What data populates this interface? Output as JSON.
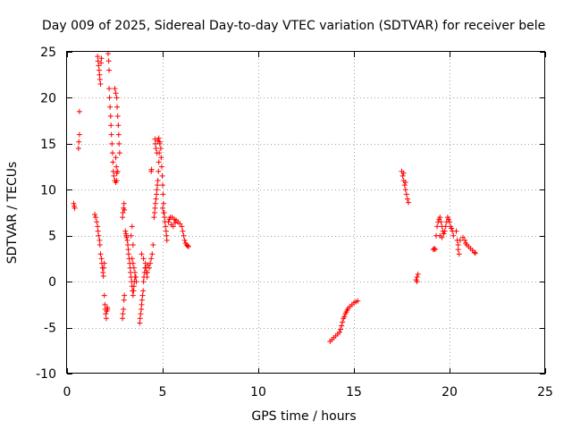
{
  "chart_data": {
    "type": "scatter",
    "title": "Day 009 of 2025, Sidereal Day-to-day VTEC variation (SDTVAR) for receiver bele",
    "xlabel": "GPS time / hours",
    "ylabel": "SDTVAR / TECUs",
    "xlim": [
      0,
      25
    ],
    "ylim": [
      -10,
      25
    ],
    "xticks": [
      0,
      5,
      10,
      15,
      20,
      25
    ],
    "yticks": [
      -10,
      -5,
      0,
      5,
      10,
      15,
      20,
      25
    ],
    "grid": true,
    "marker": "+",
    "color": "#ff0000",
    "series": [
      {
        "name": "SDTVAR",
        "points": [
          [
            0.35,
            8.5
          ],
          [
            0.38,
            8.2
          ],
          [
            0.4,
            8.0
          ],
          [
            0.6,
            14.5
          ],
          [
            0.62,
            15.2
          ],
          [
            0.65,
            16.0
          ],
          [
            0.65,
            18.5
          ],
          [
            1.45,
            7.3
          ],
          [
            1.5,
            7.0
          ],
          [
            1.55,
            6.5
          ],
          [
            1.6,
            6.0
          ],
          [
            1.62,
            5.5
          ],
          [
            1.65,
            5.0
          ],
          [
            1.7,
            4.5
          ],
          [
            1.72,
            4.0
          ],
          [
            1.75,
            3.0
          ],
          [
            1.8,
            2.5
          ],
          [
            1.82,
            2.0
          ],
          [
            1.85,
            1.5
          ],
          [
            1.88,
            1.0
          ],
          [
            1.9,
            0.6
          ],
          [
            1.92,
            1.5
          ],
          [
            1.95,
            2.0
          ],
          [
            1.6,
            24.5
          ],
          [
            1.62,
            24.0
          ],
          [
            1.65,
            23.5
          ],
          [
            1.68,
            23.0
          ],
          [
            1.7,
            22.5
          ],
          [
            1.72,
            22.0
          ],
          [
            1.75,
            21.5
          ],
          [
            1.8,
            24.3
          ],
          [
            1.78,
            23.8
          ],
          [
            1.95,
            -1.5
          ],
          [
            2.0,
            -3.0
          ],
          [
            2.02,
            -3.5
          ],
          [
            2.05,
            -4.0
          ],
          [
            2.08,
            -3.2
          ],
          [
            2.1,
            -2.8
          ],
          [
            2.12,
            -3.0
          ],
          [
            1.98,
            -2.5
          ],
          [
            2.15,
            24.8
          ],
          [
            2.18,
            24.0
          ],
          [
            2.2,
            23.0
          ],
          [
            2.2,
            21.0
          ],
          [
            2.22,
            20.0
          ],
          [
            2.25,
            19.0
          ],
          [
            2.28,
            18.0
          ],
          [
            2.3,
            17.0
          ],
          [
            2.32,
            16.0
          ],
          [
            2.35,
            15.0
          ],
          [
            2.38,
            14.0
          ],
          [
            2.4,
            13.0
          ],
          [
            2.42,
            12.0
          ],
          [
            2.45,
            11.5
          ],
          [
            2.5,
            11.0
          ],
          [
            2.55,
            10.8
          ],
          [
            2.6,
            11.0
          ],
          [
            2.65,
            12.0
          ],
          [
            2.5,
            21.0
          ],
          [
            2.55,
            20.5
          ],
          [
            2.6,
            20.0
          ],
          [
            2.62,
            19.0
          ],
          [
            2.65,
            18.0
          ],
          [
            2.68,
            17.0
          ],
          [
            2.7,
            16.0
          ],
          [
            2.72,
            15.0
          ],
          [
            2.75,
            14.0
          ],
          [
            2.55,
            13.5
          ],
          [
            2.58,
            12.5
          ],
          [
            2.6,
            11.8
          ],
          [
            2.9,
            -4.0
          ],
          [
            2.92,
            -3.5
          ],
          [
            2.95,
            -3.0
          ],
          [
            2.98,
            -2.0
          ],
          [
            3.0,
            -1.5
          ],
          [
            2.9,
            7.0
          ],
          [
            2.92,
            7.5
          ],
          [
            2.95,
            8.0
          ],
          [
            2.98,
            8.5
          ],
          [
            3.0,
            7.8
          ],
          [
            3.05,
            5.5
          ],
          [
            3.08,
            5.2
          ],
          [
            3.1,
            5.0
          ],
          [
            3.12,
            4.8
          ],
          [
            3.15,
            4.5
          ],
          [
            3.18,
            4.0
          ],
          [
            3.2,
            3.5
          ],
          [
            3.22,
            3.0
          ],
          [
            3.25,
            2.5
          ],
          [
            3.28,
            2.0
          ],
          [
            3.3,
            1.5
          ],
          [
            3.32,
            1.0
          ],
          [
            3.35,
            0.5
          ],
          [
            3.38,
            0.0
          ],
          [
            3.4,
            -0.5
          ],
          [
            3.42,
            -1.0
          ],
          [
            3.45,
            -1.5
          ],
          [
            3.48,
            -1.0
          ],
          [
            3.5,
            -0.5
          ],
          [
            3.52,
            0.0
          ],
          [
            3.55,
            0.5
          ],
          [
            3.4,
            2.5
          ],
          [
            3.45,
            2.0
          ],
          [
            3.5,
            1.5
          ],
          [
            3.55,
            1.0
          ],
          [
            3.6,
            0.5
          ],
          [
            3.62,
            0.0
          ],
          [
            3.4,
            6.0
          ],
          [
            3.35,
            5.0
          ],
          [
            3.45,
            4.0
          ],
          [
            3.8,
            -4.5
          ],
          [
            3.82,
            -4.0
          ],
          [
            3.85,
            -3.5
          ],
          [
            3.88,
            -3.0
          ],
          [
            3.9,
            -2.5
          ],
          [
            3.92,
            -2.0
          ],
          [
            3.95,
            -1.5
          ],
          [
            3.98,
            -1.0
          ],
          [
            4.0,
            0.0
          ],
          [
            4.02,
            0.5
          ],
          [
            4.05,
            1.0
          ],
          [
            4.08,
            1.5
          ],
          [
            4.1,
            2.0
          ],
          [
            4.12,
            1.5
          ],
          [
            4.15,
            1.0
          ],
          [
            4.18,
            0.5
          ],
          [
            4.2,
            1.0
          ],
          [
            4.22,
            1.8
          ],
          [
            4.0,
            2.5
          ],
          [
            3.9,
            3.0
          ],
          [
            4.3,
            1.5
          ],
          [
            4.35,
            2.0
          ],
          [
            4.4,
            2.5
          ],
          [
            4.45,
            3.0
          ],
          [
            4.5,
            4.0
          ],
          [
            4.4,
            12.0
          ],
          [
            4.42,
            12.2
          ],
          [
            4.55,
            7.0
          ],
          [
            4.58,
            7.5
          ],
          [
            4.6,
            8.0
          ],
          [
            4.62,
            8.5
          ],
          [
            4.65,
            9.0
          ],
          [
            4.68,
            9.5
          ],
          [
            4.7,
            10.0
          ],
          [
            4.72,
            10.5
          ],
          [
            4.75,
            11.0
          ],
          [
            4.78,
            12.0
          ],
          [
            4.8,
            13.0
          ],
          [
            4.82,
            14.0
          ],
          [
            4.85,
            15.0
          ],
          [
            4.6,
            15.5
          ],
          [
            4.62,
            15.0
          ],
          [
            4.65,
            14.5
          ],
          [
            4.7,
            14.0
          ],
          [
            4.75,
            15.3
          ],
          [
            4.8,
            15.6
          ],
          [
            4.85,
            15.2
          ],
          [
            4.9,
            14.5
          ],
          [
            4.92,
            13.5
          ],
          [
            4.95,
            12.5
          ],
          [
            4.98,
            11.5
          ],
          [
            5.0,
            10.5
          ],
          [
            5.02,
            9.5
          ],
          [
            5.05,
            8.5
          ],
          [
            5.08,
            7.5
          ],
          [
            5.1,
            7.0
          ],
          [
            5.12,
            6.5
          ],
          [
            5.15,
            6.0
          ],
          [
            5.18,
            5.5
          ],
          [
            5.2,
            5.0
          ],
          [
            5.22,
            4.5
          ],
          [
            5.0,
            8.0
          ],
          [
            5.05,
            7.5
          ],
          [
            5.3,
            6.5
          ],
          [
            5.35,
            6.8
          ],
          [
            5.4,
            7.0
          ],
          [
            5.5,
            7.0
          ],
          [
            5.6,
            6.8
          ],
          [
            5.7,
            6.7
          ],
          [
            5.8,
            6.5
          ],
          [
            5.9,
            6.3
          ],
          [
            6.0,
            6.0
          ],
          [
            6.05,
            5.5
          ],
          [
            6.1,
            5.0
          ],
          [
            6.15,
            4.5
          ],
          [
            6.2,
            4.2
          ],
          [
            6.25,
            4.0
          ],
          [
            6.3,
            3.9
          ],
          [
            6.35,
            3.8
          ],
          [
            5.45,
            6.2
          ],
          [
            5.55,
            6.0
          ],
          [
            5.65,
            6.4
          ],
          [
            13.75,
            -6.5
          ],
          [
            13.85,
            -6.3
          ],
          [
            13.95,
            -6.1
          ],
          [
            14.05,
            -5.9
          ],
          [
            14.15,
            -5.7
          ],
          [
            14.25,
            -5.5
          ],
          [
            14.3,
            -5.2
          ],
          [
            14.35,
            -4.8
          ],
          [
            14.4,
            -4.4
          ],
          [
            14.45,
            -4.0
          ],
          [
            14.5,
            -3.8
          ],
          [
            14.55,
            -3.5
          ],
          [
            14.6,
            -3.3
          ],
          [
            14.65,
            -3.1
          ],
          [
            14.7,
            -2.9
          ],
          [
            14.8,
            -2.7
          ],
          [
            14.9,
            -2.5
          ],
          [
            15.0,
            -2.3
          ],
          [
            15.1,
            -2.2
          ],
          [
            15.2,
            -2.1
          ],
          [
            17.5,
            12.0
          ],
          [
            17.55,
            11.5
          ],
          [
            17.6,
            11.0
          ],
          [
            17.65,
            10.5
          ],
          [
            17.7,
            10.0
          ],
          [
            17.75,
            9.5
          ],
          [
            17.8,
            9.0
          ],
          [
            17.85,
            8.6
          ],
          [
            17.6,
            11.8
          ],
          [
            17.7,
            10.8
          ],
          [
            18.25,
            0.2
          ],
          [
            18.3,
            0.5
          ],
          [
            18.35,
            0.8
          ],
          [
            18.3,
            0.0
          ],
          [
            19.15,
            3.5
          ],
          [
            19.2,
            3.6
          ],
          [
            19.25,
            3.5
          ],
          [
            19.3,
            5.0
          ],
          [
            19.35,
            6.0
          ],
          [
            19.4,
            6.5
          ],
          [
            19.45,
            6.8
          ],
          [
            19.5,
            7.0
          ],
          [
            19.55,
            6.5
          ],
          [
            19.6,
            6.0
          ],
          [
            19.65,
            5.5
          ],
          [
            19.7,
            5.2
          ],
          [
            19.75,
            5.5
          ],
          [
            19.8,
            6.0
          ],
          [
            19.85,
            6.5
          ],
          [
            19.9,
            7.0
          ],
          [
            19.95,
            6.8
          ],
          [
            20.0,
            6.5
          ],
          [
            20.05,
            6.0
          ],
          [
            20.1,
            5.8
          ],
          [
            20.15,
            5.5
          ],
          [
            20.2,
            5.0
          ],
          [
            19.5,
            5.0
          ],
          [
            19.6,
            4.8
          ],
          [
            20.35,
            5.5
          ],
          [
            20.4,
            4.5
          ],
          [
            20.45,
            3.5
          ],
          [
            20.5,
            3.0
          ],
          [
            20.45,
            4.0
          ],
          [
            20.55,
            4.5
          ],
          [
            20.7,
            4.8
          ],
          [
            20.8,
            4.5
          ],
          [
            20.85,
            4.2
          ],
          [
            20.9,
            4.0
          ],
          [
            21.0,
            3.8
          ],
          [
            21.1,
            3.6
          ],
          [
            21.2,
            3.4
          ],
          [
            21.3,
            3.2
          ],
          [
            21.35,
            3.1
          ]
        ]
      }
    ]
  }
}
